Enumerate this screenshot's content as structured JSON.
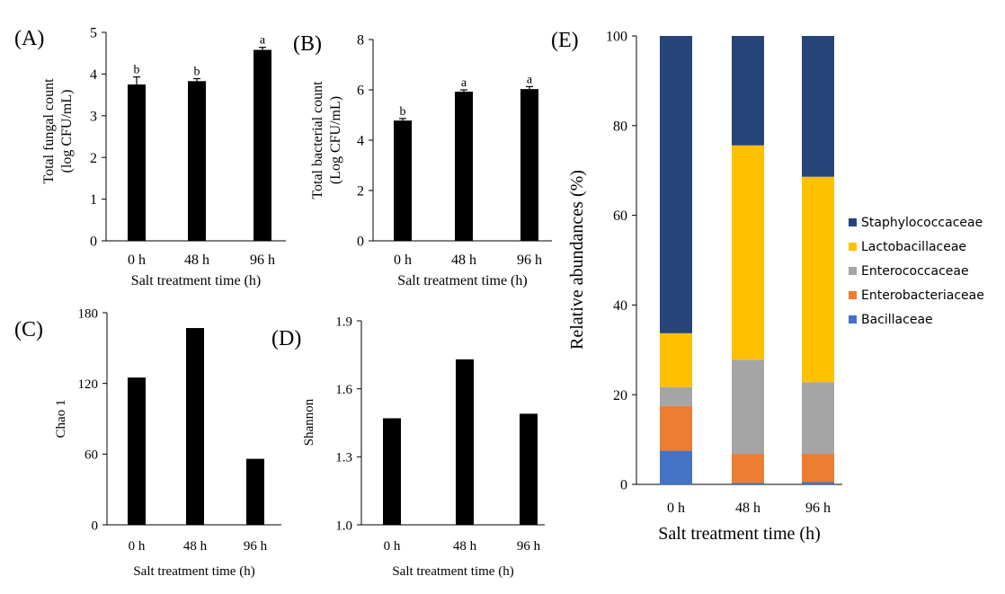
{
  "chart_data": [
    {
      "id": "A",
      "panel_label": "(A)",
      "type": "bar",
      "categories": [
        "0 h",
        "48 h",
        "96 h"
      ],
      "values": [
        3.75,
        3.83,
        4.58
      ],
      "errors": [
        0.18,
        0.06,
        0.06
      ],
      "sig_letters": [
        "b",
        "b",
        "a"
      ],
      "xlabel": "Salt treatment time (h)",
      "ylabel_lines": [
        "Total fungal count",
        "(log CFU/mL)"
      ],
      "ylim": [
        0,
        5
      ],
      "yticks": [
        "0",
        "1",
        "2",
        "3",
        "4",
        "5"
      ],
      "bar_color": "#000000",
      "grid": false
    },
    {
      "id": "B",
      "panel_label": "(B)",
      "type": "bar",
      "categories": [
        "0 h",
        "48 h",
        "96 h"
      ],
      "values": [
        4.78,
        5.93,
        6.03
      ],
      "errors": [
        0.08,
        0.07,
        0.1
      ],
      "sig_letters": [
        "b",
        "a",
        "a"
      ],
      "xlabel": "Salt treatment time (h)",
      "ylabel_lines": [
        "Total bacterial count",
        "(Log CFU/mL)"
      ],
      "ylim": [
        0,
        8
      ],
      "yticks": [
        "0",
        "2",
        "4",
        "6",
        "8"
      ],
      "bar_color": "#000000",
      "grid": false
    },
    {
      "id": "C",
      "panel_label": "(C)",
      "type": "bar",
      "categories": [
        "0 h",
        "48 h",
        "96 h"
      ],
      "values": [
        125,
        167,
        56
      ],
      "xlabel": "Salt treatment time (h)",
      "ylabel_lines": [
        "Chao 1"
      ],
      "ylim": [
        0,
        180
      ],
      "yticks": [
        "0",
        "60",
        "120",
        "180"
      ],
      "bar_color": "#000000",
      "grid": false
    },
    {
      "id": "D",
      "panel_label": "(D)",
      "type": "bar",
      "categories": [
        "0 h",
        "48 h",
        "96 h"
      ],
      "values": [
        1.47,
        1.73,
        1.49
      ],
      "xlabel": "Salt treatment time (h)",
      "ylabel_lines": [
        "Shannon"
      ],
      "ylim": [
        1.0,
        1.9
      ],
      "yticks": [
        "1.0",
        "1.3",
        "1.6",
        "1.9"
      ],
      "bar_color": "#000000",
      "grid": false
    },
    {
      "id": "E",
      "panel_label": "(E)",
      "type": "bar",
      "stacked": true,
      "categories": [
        "0 h",
        "48 h",
        "96 h"
      ],
      "xlabel": "Salt treatment time (h)",
      "ylabel_lines": [
        "Relative abundances (%)"
      ],
      "ylim": [
        0,
        100
      ],
      "yticks": [
        "0",
        "20",
        "40",
        "60",
        "80",
        "100"
      ],
      "legend_position": "right",
      "series": [
        {
          "name": "Bacillaceae",
          "color": "#4472c4",
          "values": [
            7.5,
            0.3,
            0.5
          ]
        },
        {
          "name": "Enterobacteriaceae",
          "color": "#ed7d31",
          "values": [
            10,
            6.5,
            6.3
          ]
        },
        {
          "name": "Enterococcaceae",
          "color": "#a5a5a5",
          "values": [
            4.2,
            21,
            16
          ]
        },
        {
          "name": "Lactobacillaceae",
          "color": "#ffc000",
          "values": [
            12,
            47.8,
            45.8
          ]
        },
        {
          "name": "Staphylococcaceae",
          "color": "#264478",
          "values": [
            66.3,
            24.4,
            31.4
          ]
        }
      ]
    }
  ]
}
